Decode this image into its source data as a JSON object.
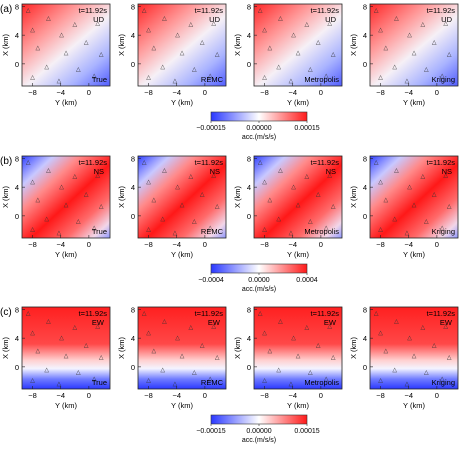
{
  "figure": {
    "rows": [
      {
        "label": "(a)",
        "component": "UD",
        "time": "t=11.92s",
        "panels": [
          "True",
          "REMC",
          "Metropolis",
          "Kriging"
        ],
        "colorbar": {
          "ticks": [
            "−0.00015",
            "0.00000",
            "0.00015"
          ],
          "label": "acc.(m/s/s)"
        }
      },
      {
        "label": "(b)",
        "component": "NS",
        "time": "t=11.92s",
        "panels": [
          "True",
          "REMC",
          "Metropolis",
          "Kriging"
        ],
        "colorbar": {
          "ticks": [
            "−0.0004",
            "0.0000",
            "0.0004"
          ],
          "label": "acc.(m/s/s)"
        }
      },
      {
        "label": "(c)",
        "component": "EW",
        "time": "t=11.92s",
        "panels": [
          "True",
          "REMC",
          "Metropolis",
          "Kriging"
        ],
        "colorbar": {
          "ticks": [
            "−0.00015",
            "0.00000",
            "0.00015"
          ],
          "label": "acc.(m/s/s)"
        }
      }
    ],
    "axes": {
      "xlabel": "Y (km)",
      "ylabel": "X (km)",
      "xticks": [
        "−8",
        "−4",
        "0"
      ],
      "yticks": [
        "8",
        "4",
        "0"
      ]
    },
    "colors": {
      "negative": "#2a38ff",
      "zero": "#ffffff",
      "positive": "#ff1a1a",
      "station": "#333333"
    },
    "marker": "△"
  }
}
